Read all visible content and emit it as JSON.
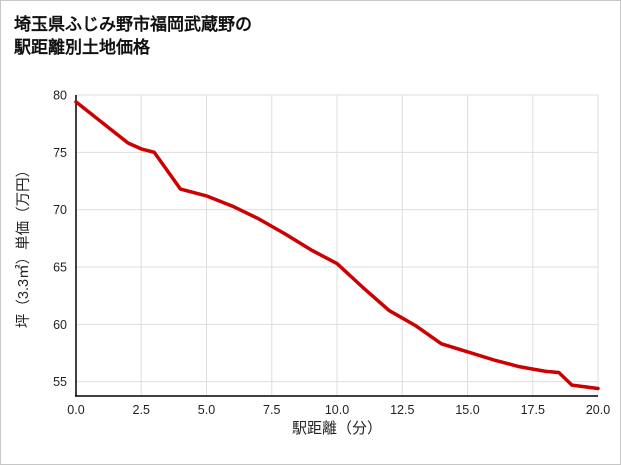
{
  "title": {
    "line1": "埼玉県ふじみ野市福岡武蔵野の",
    "line2": "駅距離別土地価格"
  },
  "chart_data": {
    "type": "line",
    "title": "埼玉県ふじみ野市福岡武蔵野の駅距離別土地価格",
    "xlabel": "駅距離（分）",
    "ylabel": "坪（3.3㎡）単価（万円）",
    "x": [
      0,
      1,
      2,
      2.5,
      3,
      4,
      5,
      6,
      7,
      8,
      9,
      10,
      11,
      12,
      13,
      14,
      15,
      16,
      17,
      18,
      18.5,
      19,
      20
    ],
    "values": [
      79.4,
      77.6,
      75.8,
      75.3,
      75.0,
      71.8,
      71.2,
      70.3,
      69.2,
      67.9,
      66.5,
      65.3,
      63.2,
      61.2,
      59.9,
      58.3,
      57.6,
      56.9,
      56.3,
      55.9,
      55.8,
      54.7,
      54.4
    ],
    "xlim": [
      0,
      20
    ],
    "ylim": [
      53.75,
      80
    ],
    "x_ticks": [
      0,
      2.5,
      5,
      7.5,
      10,
      12.5,
      15,
      17.5,
      20
    ],
    "x_tick_labels": [
      "0.0",
      "2.5",
      "5.0",
      "7.5",
      "10.0",
      "12.5",
      "15.0",
      "17.5",
      "20.0"
    ],
    "y_ticks": [
      55,
      60,
      65,
      70,
      75,
      80
    ],
    "y_tick_labels": [
      "55",
      "60",
      "65",
      "70",
      "75",
      "80"
    ],
    "grid": true,
    "legend": "none"
  },
  "colors": {
    "line": "#cc0000",
    "grid": "#dedede",
    "axis": "#000000",
    "tick_text": "#222222",
    "title_text": "#111111"
  }
}
